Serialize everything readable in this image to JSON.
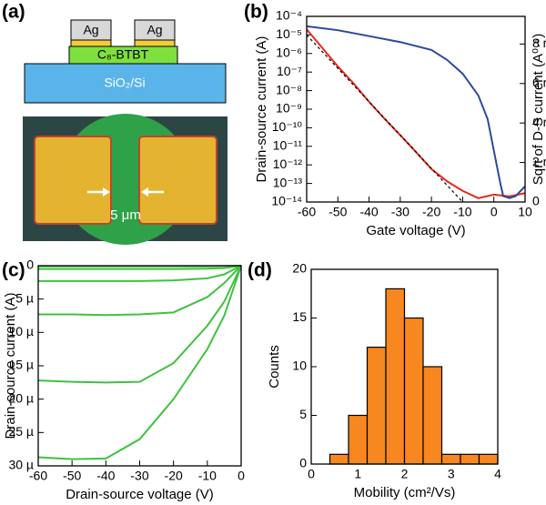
{
  "diagram": {
    "panel_label": "(a)",
    "electrode_left": "Ag",
    "electrode_right": "Ag",
    "semiconductor": "C₈-BTBT",
    "substrate": "SiO₂/Si",
    "scale_bar": "5 μm"
  },
  "chart_data": [
    {
      "type": "line",
      "panel_label": "(b)",
      "xlabel": "Gate voltage (V)",
      "ylabel": "Drain-source current (A)",
      "y2label": "Sqrt of D-S current (A⁰·⁵)",
      "ylog": true,
      "xlim": [
        -60,
        10
      ],
      "xticks": [
        -60,
        -50,
        -40,
        -30,
        -20,
        -10,
        0,
        10
      ],
      "ylim": [
        1e-14,
        0.0001
      ],
      "yticks": [
        {
          "value": 0.0001,
          "label": "10⁻⁴"
        },
        {
          "value": 1e-05,
          "label": "10⁻⁵"
        },
        {
          "value": 1e-06,
          "label": "10⁻⁶"
        },
        {
          "value": 1e-07,
          "label": "10⁻⁷"
        },
        {
          "value": 1e-08,
          "label": "10⁻⁸"
        },
        {
          "value": 1e-09,
          "label": "10⁻⁹"
        },
        {
          "value": 1e-10,
          "label": "10⁻¹⁰"
        },
        {
          "value": 1e-11,
          "label": "10⁻¹¹"
        },
        {
          "value": 1e-12,
          "label": "10⁻¹²"
        },
        {
          "value": 1e-13,
          "label": "10⁻¹³"
        },
        {
          "value": 1e-14,
          "label": "10⁻¹⁴"
        }
      ],
      "y2lim": [
        0,
        0.0094
      ],
      "y2ticks": [
        0,
        {
          "value": 0.002,
          "label": "2 m"
        },
        {
          "value": 0.004,
          "label": "4 m"
        },
        {
          "value": 0.006,
          "label": "6 m"
        },
        {
          "value": 0.008,
          "label": "8 m"
        }
      ],
      "series": [
        {
          "color": "#e8291c",
          "x": [
            -60,
            -55,
            -50,
            -45,
            -40,
            -35,
            -30,
            -25,
            -20,
            -15,
            -10,
            -5,
            0,
            5,
            10
          ],
          "values": [
            2e-05,
            2e-06,
            2e-07,
            2.5e-08,
            2.5e-09,
            3e-10,
            4e-11,
            5e-12,
            6e-13,
            1.3e-13,
            4e-14,
            1.6e-14,
            2.5e-14,
            2e-14,
            3e-14
          ]
        },
        {
          "color": "#000000",
          "dashed": true,
          "x": [
            -60,
            -10
          ],
          "values": [
            1e-05,
            1e-14
          ]
        },
        {
          "color": "#2b4a9c",
          "axis": "y2",
          "x": [
            -60,
            -50,
            -40,
            -30,
            -20,
            -15,
            -10,
            -5,
            -2,
            0,
            2,
            3,
            5,
            7,
            10
          ],
          "values": [
            0.0089,
            0.0087,
            0.0084,
            0.0081,
            0.0077,
            0.0072,
            0.0065,
            0.0054,
            0.0042,
            0.0026,
            0.001,
            0.0003,
            0.0002,
            0.0003,
            0.0008
          ]
        }
      ]
    },
    {
      "type": "line",
      "panel_label": "(c)",
      "xlabel": "Drain-source voltage (V)",
      "ylabel": "Drain-source current (A)",
      "y_inverted": true,
      "xlim": [
        -60,
        0
      ],
      "xticks": [
        -60,
        -50,
        -40,
        -30,
        -20,
        -10,
        0
      ],
      "ylim": [
        0,
        3e-05
      ],
      "yticks": [
        0,
        {
          "value": 5e-06,
          "label": "5 µ"
        },
        {
          "value": 1e-05,
          "label": "10 µ"
        },
        {
          "value": 1.5e-05,
          "label": "15 µ"
        },
        {
          "value": 2e-05,
          "label": "20 µ"
        },
        {
          "value": 2.5e-05,
          "label": "25 µ"
        },
        {
          "value": 3e-05,
          "label": "30 µ"
        }
      ],
      "x": [
        -60,
        -50,
        -40,
        -30,
        -20,
        -10,
        -5,
        0
      ],
      "series": [
        {
          "color": "#3fc23f",
          "values": [
            1e-07,
            1e-07,
            1e-07,
            1e-07,
            1e-07,
            1e-07,
            5e-08,
            0
          ]
        },
        {
          "color": "#3fc23f",
          "values": [
            5e-07,
            5e-07,
            5e-07,
            5e-07,
            5e-07,
            4.5e-07,
            3.5e-07,
            0
          ]
        },
        {
          "color": "#3fc23f",
          "values": [
            2.3e-06,
            2.3e-06,
            2.3e-06,
            2.3e-06,
            2.2e-06,
            1.9e-06,
            1.3e-06,
            0
          ]
        },
        {
          "color": "#3fc23f",
          "values": [
            7.3e-06,
            7.3e-06,
            7.4e-06,
            7.3e-06,
            7e-06,
            4.7e-06,
            2.6e-06,
            0
          ]
        },
        {
          "color": "#3fc23f",
          "values": [
            1.72e-05,
            1.74e-05,
            1.75e-05,
            1.74e-05,
            1.46e-05,
            9e-06,
            5.4e-06,
            0
          ]
        },
        {
          "color": "#3fc23f",
          "values": [
            2.87e-05,
            2.9e-05,
            2.89e-05,
            2.6e-05,
            2e-05,
            1.25e-05,
            7.5e-06,
            0
          ]
        }
      ]
    },
    {
      "type": "histogram",
      "panel_label": "(d)",
      "xlabel": "Mobility (cm²/Vs)",
      "ylabel": "Counts",
      "color": "#f7871f",
      "xlim": [
        0,
        4
      ],
      "xticks": [
        0,
        1,
        2,
        3,
        4
      ],
      "ylim": [
        0,
        20
      ],
      "yticks": [
        0,
        5,
        10,
        15,
        20
      ],
      "bins": [
        0.4,
        0.8,
        1.2,
        1.6,
        2.0,
        2.4,
        2.8,
        3.2,
        3.6,
        4.0
      ],
      "values": [
        1,
        5,
        12,
        18,
        15,
        10,
        1,
        1,
        1
      ]
    }
  ]
}
